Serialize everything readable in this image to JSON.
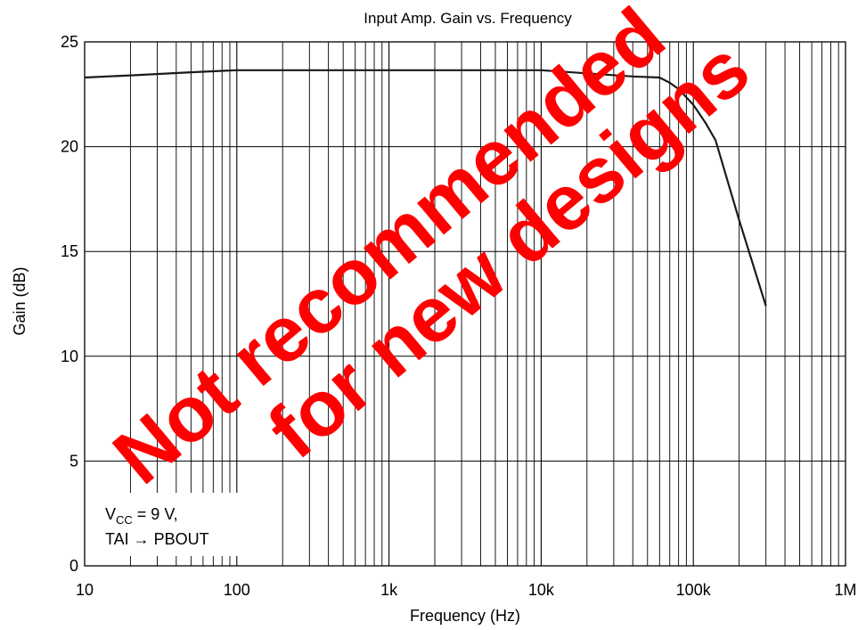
{
  "chart_data": {
    "type": "line",
    "title": "Input Amp. Gain vs. Frequency",
    "xlabel": "Frequency  (Hz)",
    "ylabel": "Gain  (dB)",
    "xscale": "log",
    "xlim": [
      10,
      1000000
    ],
    "ylim": [
      0,
      25
    ],
    "grid": true,
    "x_ticks": [
      10,
      100,
      1000,
      10000,
      100000,
      1000000
    ],
    "x_tick_labels": [
      "10",
      "100",
      "1k",
      "10k",
      "100k",
      "1M"
    ],
    "y_ticks": [
      0,
      5,
      10,
      15,
      20,
      25
    ],
    "y_tick_labels": [
      "0",
      "5",
      "10",
      "15",
      "20",
      "25"
    ],
    "series": [
      {
        "x": [
          10,
          20,
          50,
          100,
          200,
          500,
          1000,
          2000,
          5000,
          10000,
          20000,
          40000,
          60000,
          70000,
          80000,
          90000,
          100000,
          120000,
          140000,
          200000,
          300000
        ],
        "y": [
          23.3,
          23.4,
          23.55,
          23.65,
          23.65,
          23.65,
          23.65,
          23.65,
          23.65,
          23.65,
          23.5,
          23.35,
          23.3,
          23.05,
          22.75,
          22.35,
          22.0,
          21.15,
          20.3,
          16.5,
          12.4
        ],
        "color": "#1a1a1a"
      }
    ],
    "annotation": {
      "line1_main": "V",
      "line1_sub": "CC",
      "line1_rest": " = 9 V,",
      "line2": "TAI → PBOUT"
    },
    "watermark": {
      "line1": "Not recommended",
      "line2": "for new designs",
      "color": "#ff0000"
    }
  }
}
